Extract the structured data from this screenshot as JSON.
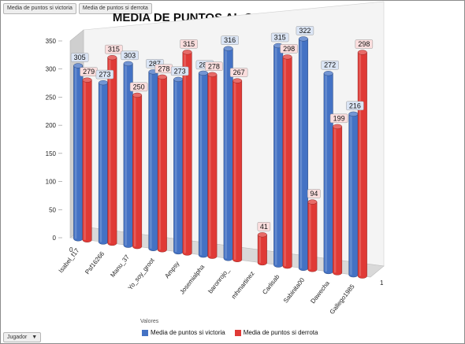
{
  "filters": {
    "top_buttons": [
      "Media de puntos si victoria",
      "Media de puntos si derrota"
    ],
    "bottom_dropdown": "Jugador",
    "dropdown_arrow": "▼",
    "valores_label": "Valores"
  },
  "colors": {
    "victoria": "#4472C4",
    "derrota": "#E03A36",
    "label_victoria_bg": "#dbe5f5",
    "label_derrota_bg": "#fbdede"
  },
  "chart_data": {
    "type": "bar",
    "title": "MEDIA DE PUNTOS  AL GANAR O PERDER",
    "categories": [
      "Isabel_f17",
      "Psf16266",
      "Manu_37",
      "Yo_soy_groot",
      "Ampsy",
      "Josemialpha",
      "baronrojo_",
      "mhmartinez",
      "Carlisab",
      "Sabinita00",
      "Dawecha",
      "Gallego1985"
    ],
    "series": [
      {
        "name": "Media de puntos si victoria",
        "values": [
          305,
          273,
          303,
          287,
          273,
          281,
          316,
          null,
          315,
          322,
          272,
          216
        ],
        "labels": [
          "305",
          "273",
          "303",
          "287",
          "273",
          "281",
          "316",
          "",
          "315",
          "322",
          "272",
          "216"
        ]
      },
      {
        "name": "Media de puntos si derrota",
        "values": [
          279,
          315,
          250,
          278,
          315,
          278,
          267,
          41,
          298,
          94,
          199,
          298
        ],
        "labels": [
          "279",
          "315",
          "250",
          "278",
          "315",
          "278",
          "267",
          "41",
          "298",
          "94",
          "199",
          "298"
        ]
      }
    ],
    "yticks": [
      "0",
      "50",
      "100",
      "150",
      "200",
      "250",
      "300",
      "350"
    ],
    "ylim": [
      0,
      350
    ],
    "depth_labels": [
      "0",
      "1"
    ],
    "legend": "bottom"
  }
}
